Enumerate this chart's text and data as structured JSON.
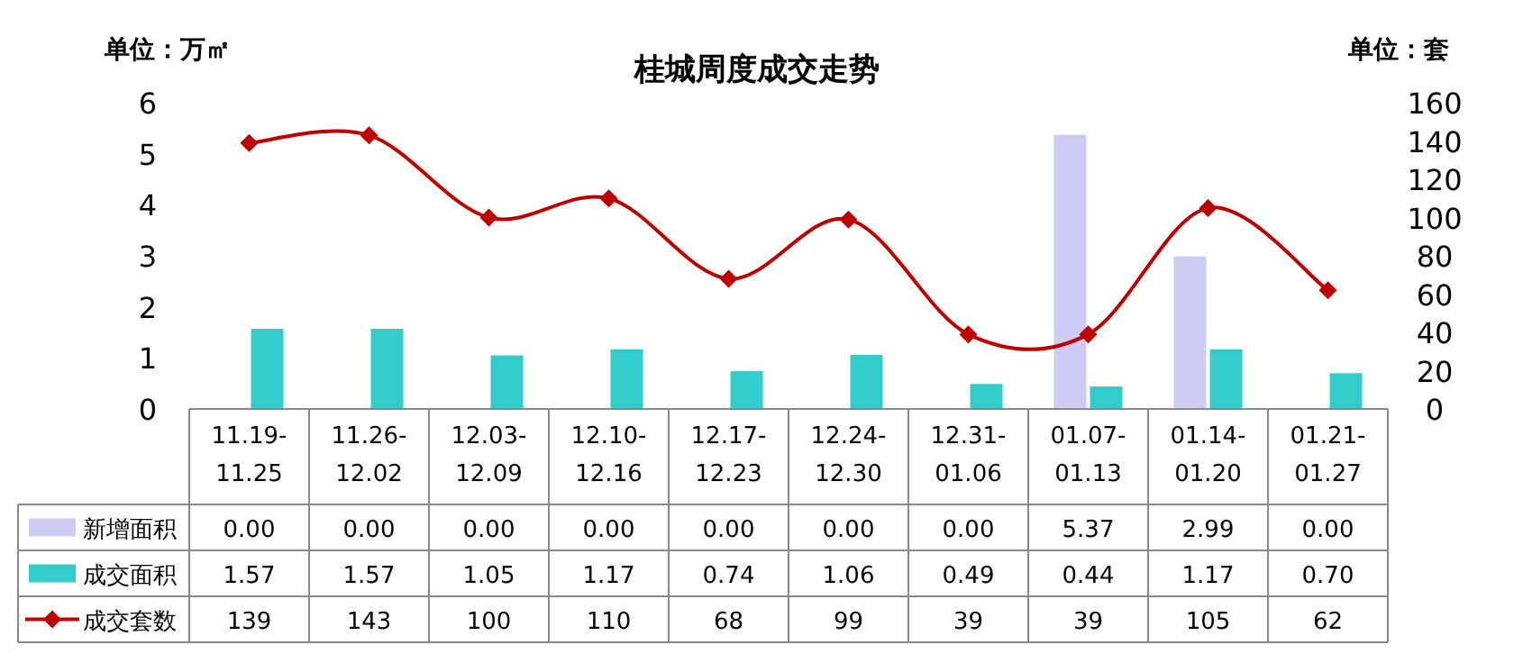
{
  "chart_data": {
    "type": "bar",
    "title": "桂城周度成交走势",
    "ylabel": "单位：万㎡",
    "y2label": "单位：套",
    "categories": [
      "11.19-11.25",
      "11.26-12.02",
      "12.03-12.09",
      "12.10-12.16",
      "12.17-12.23",
      "12.24-12.30",
      "12.31-01.06",
      "01.07-01.13",
      "01.14-01.20",
      "01.21-01.27"
    ],
    "series": [
      {
        "name": "新增面积",
        "color": "#ccccf5",
        "values": [
          0,
          0,
          0,
          0,
          0,
          0,
          0,
          5.37,
          2.99,
          0
        ],
        "value_labels": [
          "0.00",
          "0.00",
          "0.00",
          "0.00",
          "0.00",
          "0.00",
          "0.00",
          "5.37",
          "2.99",
          "0.00"
        ]
      },
      {
        "name": "成交面积",
        "color": "#33cccc",
        "values": [
          1.57,
          1.57,
          1.05,
          1.17,
          0.74,
          1.06,
          0.49,
          0.44,
          1.17,
          0.7
        ],
        "value_labels": [
          "1.57",
          "1.57",
          "1.05",
          "1.17",
          "0.74",
          "1.06",
          "0.49",
          "0.44",
          "1.17",
          "0.70"
        ]
      },
      {
        "name": "成交套数",
        "color": "#c00000",
        "type": "line",
        "axis": "y2",
        "marker": "diamond",
        "values": [
          139,
          143,
          100,
          110,
          68,
          99,
          39,
          39,
          105,
          62
        ],
        "value_labels": [
          "139",
          "143",
          "100",
          "110",
          "68",
          "99",
          "39",
          "39",
          "105",
          "62"
        ]
      }
    ],
    "ylim": [
      0,
      6
    ],
    "yticks": [
      0,
      1,
      2,
      3,
      4,
      5,
      6
    ],
    "y2lim": [
      0,
      160
    ],
    "y2ticks": [
      0,
      20,
      40,
      60,
      80,
      100,
      120,
      140,
      160
    ],
    "legend": "bottom",
    "grid": false
  }
}
